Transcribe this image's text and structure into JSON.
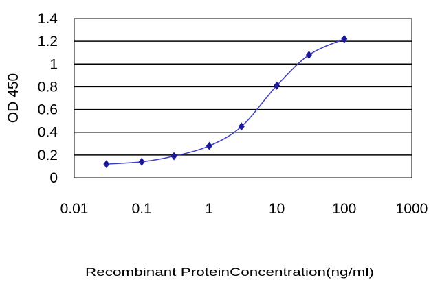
{
  "chart_data": {
    "type": "line",
    "xscale": "log",
    "xlim": [
      0.01,
      1000
    ],
    "ylim": [
      0,
      1.4
    ],
    "xlabel": "Recombinant ProteinConcentration(ng/ml)",
    "ylabel": "OD 450",
    "xticks": [
      "0.01",
      "0.1",
      "1",
      "10",
      "100",
      "1000"
    ],
    "yticks": [
      "0",
      "0.2",
      "0.4",
      "0.6",
      "0.8",
      "1",
      "1.2",
      "1.4"
    ],
    "grid": "horizontal",
    "series": [
      {
        "x": [
          0.03,
          0.1,
          0.3,
          1,
          3,
          10,
          30,
          100
        ],
        "y": [
          0.12,
          0.14,
          0.19,
          0.28,
          0.45,
          0.81,
          1.08,
          1.22
        ]
      }
    ]
  },
  "colors": {
    "line": "#3f3fc8",
    "marker": "#1a1a9a",
    "grid": "#000000",
    "frame": "#000000"
  }
}
